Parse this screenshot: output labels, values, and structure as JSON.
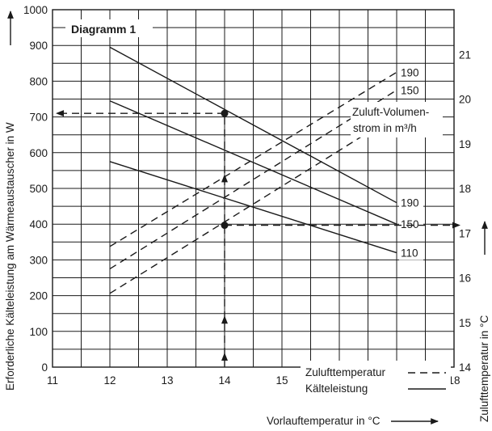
{
  "chart_data": {
    "type": "line",
    "title": "Diagramm 1",
    "xlabel": "Vorlauftemperatur in °C",
    "ylabel_left": "Erforderliche Kälteleistung am Wärmeaustauscher in W",
    "ylabel_right": "Zulufttemperatur in °C",
    "xlim": [
      11,
      18
    ],
    "ylim_left": [
      0,
      1000
    ],
    "ylim_right": [
      14,
      22
    ],
    "x_ticks": [
      "11",
      "12",
      "13",
      "14",
      "15",
      "16",
      "17",
      "18"
    ],
    "y_left_ticks": [
      "0",
      "100",
      "200",
      "300",
      "400",
      "500",
      "600",
      "700",
      "800",
      "900",
      "1000"
    ],
    "y_right_ticks": [
      "14",
      "15",
      "16",
      "17",
      "18",
      "19",
      "20",
      "21"
    ],
    "flow_title_line1": "Zuluft-Volumen-",
    "flow_title_line2": "strom in m³/h",
    "kaelteleistung_series": [
      {
        "name": "190",
        "x": [
          12,
          17
        ],
        "y": [
          895,
          460
        ]
      },
      {
        "name": "150",
        "x": [
          12,
          17
        ],
        "y": [
          745,
          400
        ]
      },
      {
        "name": "110",
        "x": [
          12,
          17
        ],
        "y": [
          575,
          320
        ]
      }
    ],
    "zulufttemperatur_series": [
      {
        "name": "190",
        "x": [
          12,
          17
        ],
        "y": [
          16.7,
          20.6
        ]
      },
      {
        "name": "150",
        "x": [
          12,
          17
        ],
        "y": [
          16.2,
          20.2
        ]
      },
      {
        "name": "110",
        "x": [
          12,
          17
        ],
        "y": [
          15.65,
          19.65
        ]
      }
    ],
    "example_points": [
      {
        "x": 14,
        "y_left": 710
      },
      {
        "x": 14,
        "y_left": 397
      }
    ],
    "legend": {
      "dashed_label": "Zulufttemperatur",
      "solid_label": "Kälteleistung",
      "position": "bottom-right"
    }
  }
}
